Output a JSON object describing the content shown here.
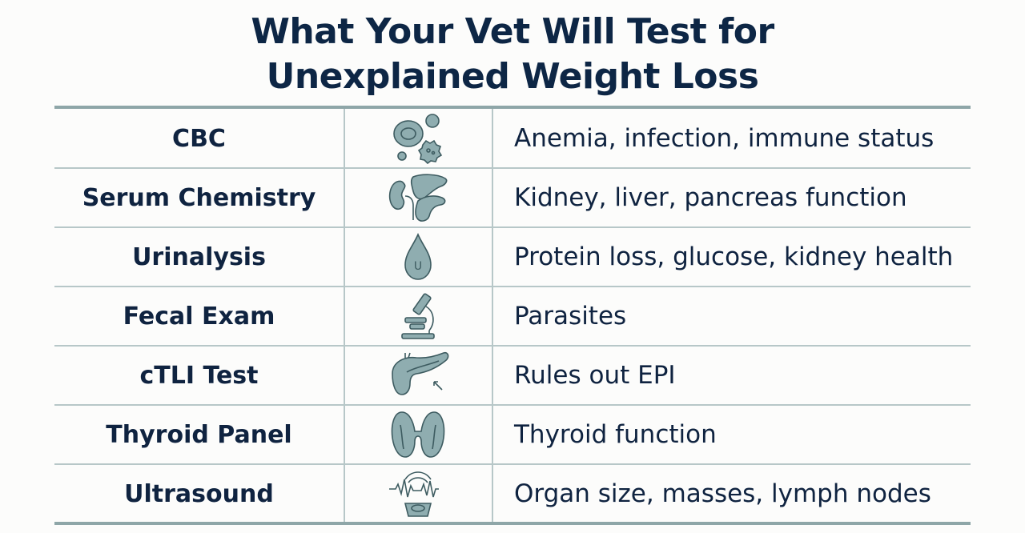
{
  "title": {
    "line1": "What Your Vet Will Test for",
    "line2": "Unexplained Weight Loss"
  },
  "rows": [
    {
      "test": "CBC",
      "icon": "blood-cells-icon",
      "description": "Anemia, infection, immune status"
    },
    {
      "test": "Serum Chemistry",
      "icon": "kidney-liver-pancreas-icon",
      "description": "Kidney, liver, pancreas function"
    },
    {
      "test": "Urinalysis",
      "icon": "urine-drop-icon",
      "description": "Protein loss, glucose, kidney health"
    },
    {
      "test": "Fecal Exam",
      "icon": "microscope-icon",
      "description": "Parasites"
    },
    {
      "test": "cTLI Test",
      "icon": "pancreas-icon",
      "description": "Rules out EPI"
    },
    {
      "test": "Thyroid Panel",
      "icon": "thyroid-icon",
      "description": "Thyroid function"
    },
    {
      "test": "Ultrasound",
      "icon": "ultrasound-icon",
      "description": "Organ size, masses, lymph nodes"
    }
  ],
  "icon_labels": {
    "urine_drop": "U"
  },
  "colors": {
    "text": "#0f2340",
    "rule": "#8ea6a8",
    "icon_fill": "#8fadb0",
    "icon_stroke": "#3d5b60"
  }
}
